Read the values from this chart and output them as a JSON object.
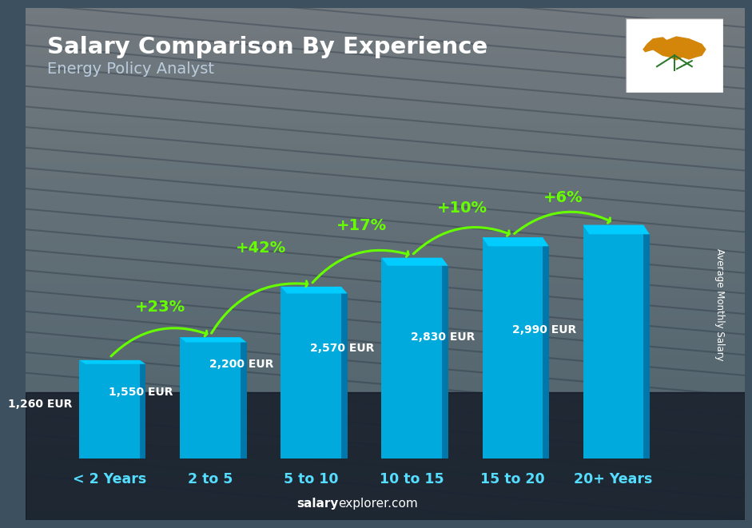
{
  "title": "Salary Comparison By Experience",
  "subtitle": "Energy Policy Analyst",
  "categories": [
    "< 2 Years",
    "2 to 5",
    "5 to 10",
    "10 to 15",
    "15 to 20",
    "20+ Years"
  ],
  "values": [
    1260,
    1550,
    2200,
    2570,
    2830,
    2990
  ],
  "pct_changes": [
    "+23%",
    "+42%",
    "+17%",
    "+10%",
    "+6%"
  ],
  "pct_color": "#66FF00",
  "value_labels": [
    "1,260 EUR",
    "1,550 EUR",
    "2,200 EUR",
    "2,570 EUR",
    "2,830 EUR",
    "2,990 EUR"
  ],
  "bar_color_main": "#00AADD",
  "bar_color_light": "#00CCFF",
  "bar_color_dark": "#0077AA",
  "title_color": "#FFFFFF",
  "subtitle_color": "#BBCCDD",
  "xtick_color": "#55DDFF",
  "ylabel": "Average Monthly Salary",
  "ylim": [
    0,
    3800
  ],
  "bar_width": 0.6,
  "bg_color": "#3d5060"
}
